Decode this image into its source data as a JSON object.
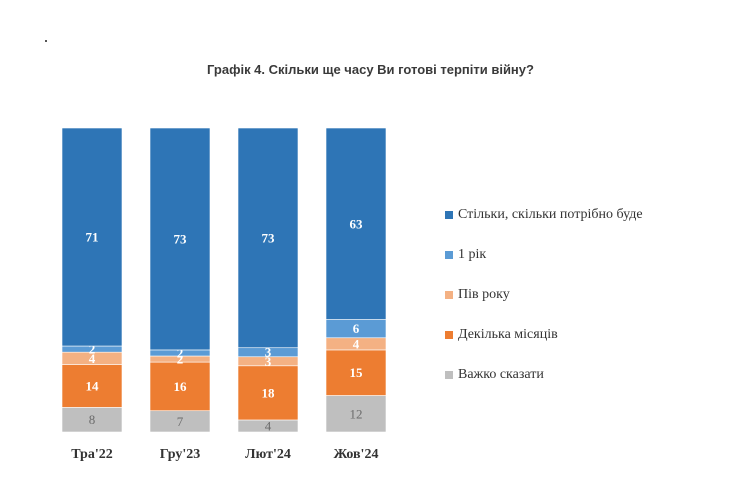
{
  "title": "Графік 4. Скільки ще часу Ви готові терпіти війну?",
  "chart_data": {
    "type": "bar",
    "stacked": true,
    "normalized": true,
    "categories": [
      "Тра'22",
      "Гру'23",
      "Лют'24",
      "Жов'24"
    ],
    "series": [
      {
        "name": "Важко сказати",
        "values": [
          8,
          7,
          4,
          12
        ],
        "color": "#BFBFBF",
        "label_color": "#6b6b6b"
      },
      {
        "name": "Декілька місяців",
        "values": [
          14,
          16,
          18,
          15
        ],
        "color": "#ED7D31",
        "label_color": "#ffffff"
      },
      {
        "name": "Пів року",
        "values": [
          4,
          2,
          3,
          4
        ],
        "color": "#F4B183",
        "label_color": "#ffffff"
      },
      {
        "name": "1 рік",
        "values": [
          2,
          2,
          3,
          6
        ],
        "color": "#5B9BD5",
        "label_color": "#ffffff"
      },
      {
        "name": "Стільки, скільки потрібно буде",
        "values": [
          71,
          73,
          73,
          63
        ],
        "color": "#2E75B6",
        "label_color": "#ffffff"
      }
    ],
    "legend_order": [
      "Стільки, скільки потрібно буде",
      "1 рік",
      "Пів року",
      "Декілька місяців",
      "Важко сказати"
    ],
    "legend_position": "right",
    "ylim": [
      0,
      100
    ],
    "grid": false
  }
}
